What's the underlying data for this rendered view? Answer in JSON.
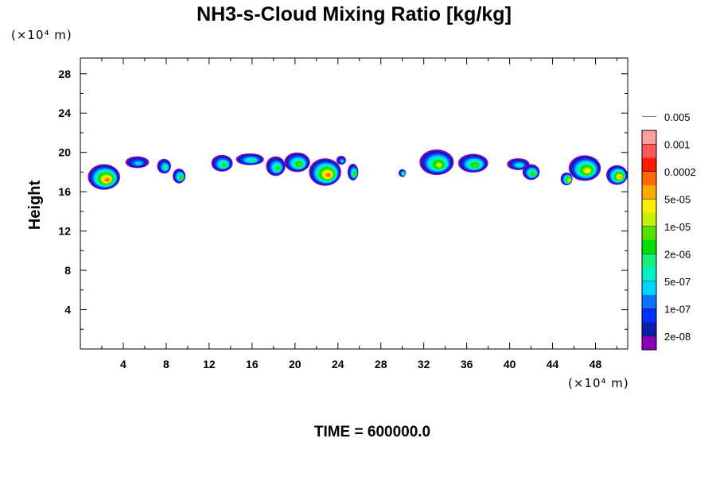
{
  "chart_data": {
    "type": "heatmap",
    "title": "NH3-s-Cloud Mixing Ratio [kg/kg]",
    "ylabel": "Height",
    "x_unit": "(×10⁴ m)",
    "y_unit": "(×10⁴ m)",
    "xlim": [
      0,
      51
    ],
    "ylim": [
      0,
      29.6
    ],
    "x_ticks": [
      4,
      8,
      12,
      16,
      20,
      24,
      28,
      32,
      36,
      40,
      44,
      48
    ],
    "y_ticks": [
      4,
      8,
      12,
      16,
      20,
      24,
      28
    ],
    "grid": false,
    "footer": "TIME = 600000.0",
    "colorbar": {
      "levels": [
        "2e-08",
        "1e-07",
        "5e-07",
        "2e-06",
        "1e-05",
        "5e-05",
        "0.0002",
        "0.001",
        "0.005"
      ],
      "colors": [
        "#8a00b8",
        "#0a1fa8",
        "#0030ff",
        "#0a73ff",
        "#00d4ff",
        "#00f0c8",
        "#18f080",
        "#00dd00",
        "#55e000",
        "#c8f000",
        "#ffee00",
        "#ffa800",
        "#ff6a00",
        "#ff1a00",
        "#ff5858",
        "#ffa0a0"
      ]
    },
    "clouds": [
      {
        "x": 2.2,
        "y": 17.5,
        "w": 3.0,
        "h": 2.6,
        "level": 12
      },
      {
        "x": 5.3,
        "y": 19.0,
        "w": 2.2,
        "h": 1.2,
        "level": 4
      },
      {
        "x": 7.8,
        "y": 18.6,
        "w": 1.3,
        "h": 1.5,
        "level": 6
      },
      {
        "x": 9.2,
        "y": 17.6,
        "w": 1.2,
        "h": 1.5,
        "level": 8
      },
      {
        "x": 13.2,
        "y": 18.9,
        "w": 2.0,
        "h": 1.7,
        "level": 7
      },
      {
        "x": 15.8,
        "y": 19.3,
        "w": 2.6,
        "h": 1.2,
        "level": 6
      },
      {
        "x": 18.2,
        "y": 18.6,
        "w": 1.8,
        "h": 2.0,
        "level": 7
      },
      {
        "x": 20.2,
        "y": 19.0,
        "w": 2.4,
        "h": 2.0,
        "level": 8
      },
      {
        "x": 22.8,
        "y": 18.0,
        "w": 3.0,
        "h": 2.8,
        "level": 12
      },
      {
        "x": 24.3,
        "y": 19.2,
        "w": 0.9,
        "h": 0.9,
        "level": 4
      },
      {
        "x": 25.4,
        "y": 18.0,
        "w": 1.0,
        "h": 1.7,
        "level": 8
      },
      {
        "x": 30.0,
        "y": 17.9,
        "w": 0.7,
        "h": 0.8,
        "level": 7
      },
      {
        "x": 33.2,
        "y": 19.0,
        "w": 3.2,
        "h": 2.6,
        "level": 9
      },
      {
        "x": 36.6,
        "y": 18.9,
        "w": 2.8,
        "h": 1.9,
        "level": 8
      },
      {
        "x": 40.8,
        "y": 18.8,
        "w": 2.1,
        "h": 1.2,
        "level": 5
      },
      {
        "x": 42.0,
        "y": 18.0,
        "w": 1.6,
        "h": 1.6,
        "level": 8
      },
      {
        "x": 45.3,
        "y": 17.3,
        "w": 1.1,
        "h": 1.3,
        "level": 11
      },
      {
        "x": 47.0,
        "y": 18.4,
        "w": 3.0,
        "h": 2.6,
        "level": 10
      },
      {
        "x": 50.0,
        "y": 17.7,
        "w": 2.0,
        "h": 2.0,
        "level": 11
      }
    ]
  }
}
